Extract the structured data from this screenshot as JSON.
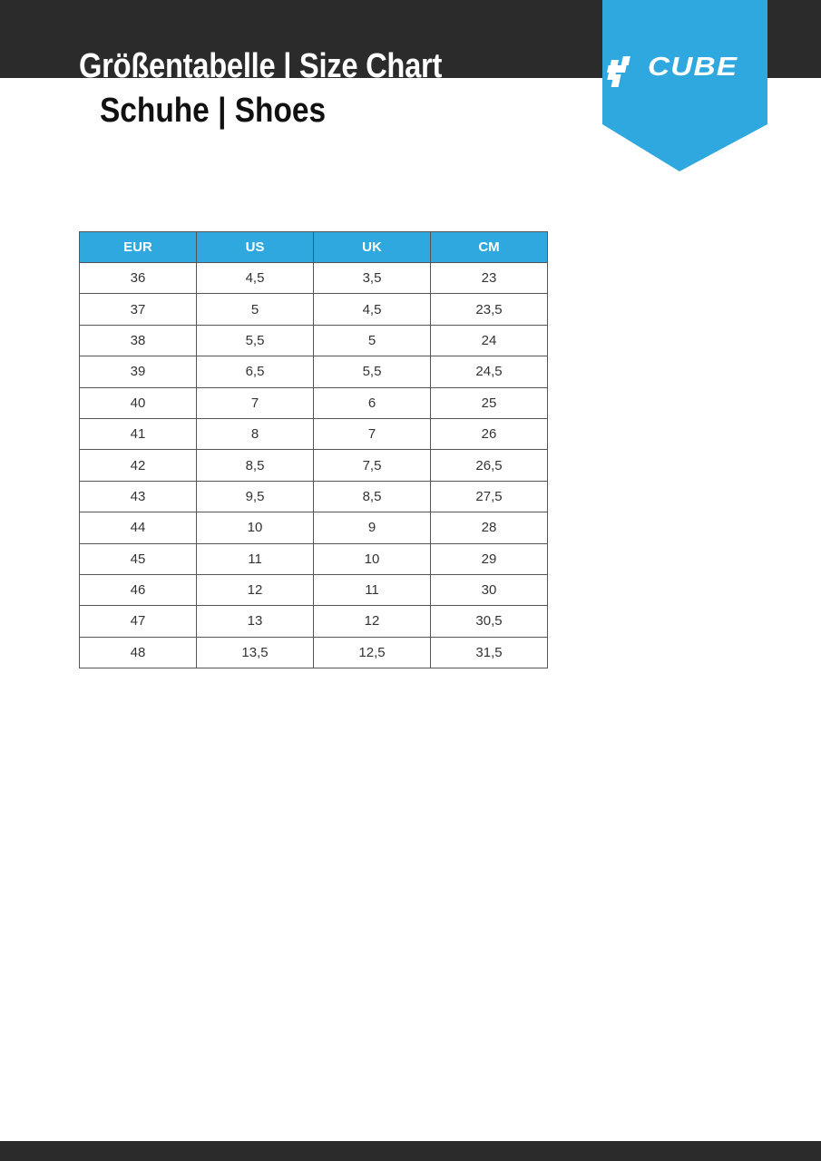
{
  "header": {
    "title": "Größentabelle | Size Chart",
    "subtitle": "Schuhe | Shoes",
    "logo": "CUBE"
  },
  "colors": {
    "accent": "#2ea8df",
    "bar": "#2b2b2b"
  },
  "table": {
    "columns": [
      "EUR",
      "US",
      "UK",
      "CM"
    ],
    "rows": [
      [
        "36",
        "4,5",
        "3,5",
        "23"
      ],
      [
        "37",
        "5",
        "4,5",
        "23,5"
      ],
      [
        "38",
        "5,5",
        "5",
        "24"
      ],
      [
        "39",
        "6,5",
        "5,5",
        "24,5"
      ],
      [
        "40",
        "7",
        "6",
        "25"
      ],
      [
        "41",
        "8",
        "7",
        "26"
      ],
      [
        "42",
        "8,5",
        "7,5",
        "26,5"
      ],
      [
        "43",
        "9,5",
        "8,5",
        "27,5"
      ],
      [
        "44",
        "10",
        "9",
        "28"
      ],
      [
        "45",
        "11",
        "10",
        "29"
      ],
      [
        "46",
        "12",
        "11",
        "30"
      ],
      [
        "47",
        "13",
        "12",
        "30,5"
      ],
      [
        "48",
        "13,5",
        "12,5",
        "31,5"
      ]
    ]
  }
}
